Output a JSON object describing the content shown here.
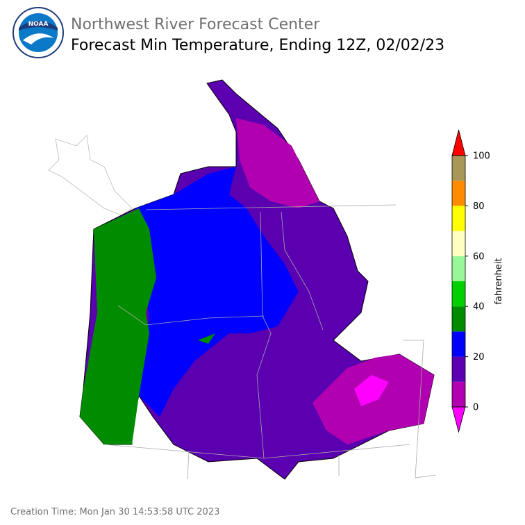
{
  "logo": {
    "text": "NOAA"
  },
  "header": {
    "title": "Northwest River Forecast Center",
    "subtitle": "Forecast Min Temperature, Ending 12Z, 02/02/23"
  },
  "colorbar": {
    "label": "fahrenheit",
    "lim": [
      0,
      100
    ],
    "bounds": [
      0,
      10,
      20,
      30,
      40,
      50,
      60,
      70,
      80,
      90,
      100
    ],
    "colors": [
      "#b000b0",
      "#5a00b0",
      "#0000ff",
      "#008c00",
      "#00d000",
      "#98f898",
      "#ffffc0",
      "#ffff00",
      "#ff8c00",
      "#a89858"
    ],
    "under_color": "#ff00ff",
    "over_color": "#ff0000",
    "ticks": [
      0,
      20,
      40,
      60,
      80,
      100
    ]
  },
  "footer": "Creation Time: Mon Jan 30 14:53:58 UTC 2023"
}
